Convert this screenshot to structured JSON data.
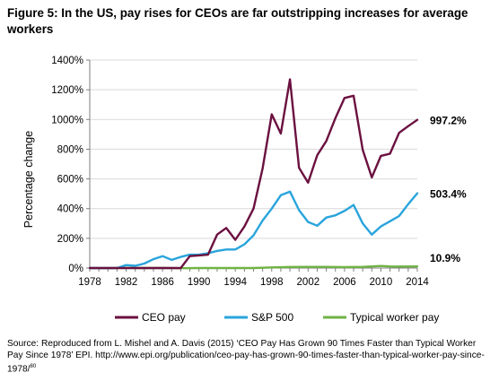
{
  "figure_title": "Figure 5: In the US, pay rises for CEOs are far outstripping increases for average workers",
  "source_text": "Source: Reproduced from L. Mishel and A. Davis (2015) ‘CEO Pay Has Grown 90 Times Faster than Typical Worker Pay Since 1978’ EPI. http://www.epi.org/publication/ceo-pay-has-grown-90-times-faster-than-typical-worker-pay-since-1978/",
  "source_footnote": "80",
  "colors": {
    "ceo": "#6b1140",
    "sp500": "#29a4dc",
    "worker": "#6fb344",
    "axis": "#7f7f7f"
  },
  "chart_data": {
    "type": "line",
    "ylabel": "Percentage change",
    "xlabel": "",
    "ylim": [
      0,
      1400
    ],
    "xlim": [
      1978,
      2014
    ],
    "y_ticks": [
      0,
      200,
      400,
      600,
      800,
      1000,
      1200,
      1400
    ],
    "y_tick_labels": [
      "0%",
      "200%",
      "400%",
      "600%",
      "800%",
      "1000%",
      "1200%",
      "1400%"
    ],
    "x_ticks": [
      1978,
      1982,
      1986,
      1990,
      1994,
      1998,
      2002,
      2006,
      2010,
      2014
    ],
    "x_tick_labels": [
      "1978",
      "1982",
      "1986",
      "1990",
      "1994",
      "1998",
      "2002",
      "2006",
      "2010",
      "2014"
    ],
    "grid": "horizontal",
    "legend_placement": "bottom",
    "series": [
      {
        "name": "CEO pay",
        "color": "#6b1140",
        "end_label": "997.2%",
        "points": [
          [
            1978,
            0
          ],
          [
            1979,
            0
          ],
          [
            1980,
            0
          ],
          [
            1981,
            0
          ],
          [
            1982,
            0
          ],
          [
            1983,
            0
          ],
          [
            1984,
            0
          ],
          [
            1985,
            0
          ],
          [
            1986,
            0
          ],
          [
            1987,
            0
          ],
          [
            1988,
            0
          ],
          [
            1989,
            80
          ],
          [
            1990,
            85
          ],
          [
            1991,
            90
          ],
          [
            1992,
            225
          ],
          [
            1993,
            270
          ],
          [
            1994,
            190
          ],
          [
            1995,
            280
          ],
          [
            1996,
            400
          ],
          [
            1997,
            670
          ],
          [
            1998,
            1035
          ],
          [
            1999,
            905
          ],
          [
            2000,
            1270
          ],
          [
            2001,
            675
          ],
          [
            2002,
            575
          ],
          [
            2003,
            760
          ],
          [
            2004,
            855
          ],
          [
            2005,
            1010
          ],
          [
            2006,
            1145
          ],
          [
            2007,
            1160
          ],
          [
            2008,
            795
          ],
          [
            2009,
            610
          ],
          [
            2010,
            755
          ],
          [
            2011,
            770
          ],
          [
            2012,
            910
          ],
          [
            2013,
            955
          ],
          [
            2014,
            997.2
          ]
        ]
      },
      {
        "name": "S&P 500",
        "color": "#29a4dc",
        "end_label": "503.4%",
        "points": [
          [
            1978,
            0
          ],
          [
            1979,
            0
          ],
          [
            1980,
            0
          ],
          [
            1981,
            0
          ],
          [
            1982,
            20
          ],
          [
            1983,
            15
          ],
          [
            1984,
            30
          ],
          [
            1985,
            60
          ],
          [
            1986,
            80
          ],
          [
            1987,
            55
          ],
          [
            1988,
            75
          ],
          [
            1989,
            90
          ],
          [
            1990,
            90
          ],
          [
            1991,
            100
          ],
          [
            1992,
            115
          ],
          [
            1993,
            125
          ],
          [
            1994,
            125
          ],
          [
            1995,
            160
          ],
          [
            1996,
            220
          ],
          [
            1997,
            320
          ],
          [
            1998,
            400
          ],
          [
            1999,
            490
          ],
          [
            2000,
            515
          ],
          [
            2001,
            390
          ],
          [
            2002,
            310
          ],
          [
            2003,
            285
          ],
          [
            2004,
            340
          ],
          [
            2005,
            355
          ],
          [
            2006,
            385
          ],
          [
            2007,
            425
          ],
          [
            2008,
            300
          ],
          [
            2009,
            225
          ],
          [
            2010,
            280
          ],
          [
            2011,
            315
          ],
          [
            2012,
            350
          ],
          [
            2013,
            430
          ],
          [
            2014,
            503.4
          ]
        ]
      },
      {
        "name": "Typical worker pay",
        "color": "#6fb344",
        "end_label": "10.9%",
        "points": [
          [
            1978,
            0
          ],
          [
            1980,
            -1
          ],
          [
            1982,
            1
          ],
          [
            1984,
            0
          ],
          [
            1986,
            1
          ],
          [
            1988,
            -1
          ],
          [
            1990,
            0
          ],
          [
            1992,
            0
          ],
          [
            1994,
            0
          ],
          [
            1996,
            0
          ],
          [
            1998,
            4
          ],
          [
            2000,
            7
          ],
          [
            2002,
            8
          ],
          [
            2004,
            8
          ],
          [
            2006,
            6
          ],
          [
            2008,
            8
          ],
          [
            2009,
            11
          ],
          [
            2010,
            14
          ],
          [
            2011,
            11
          ],
          [
            2012,
            10
          ],
          [
            2014,
            10.9
          ]
        ]
      }
    ]
  }
}
